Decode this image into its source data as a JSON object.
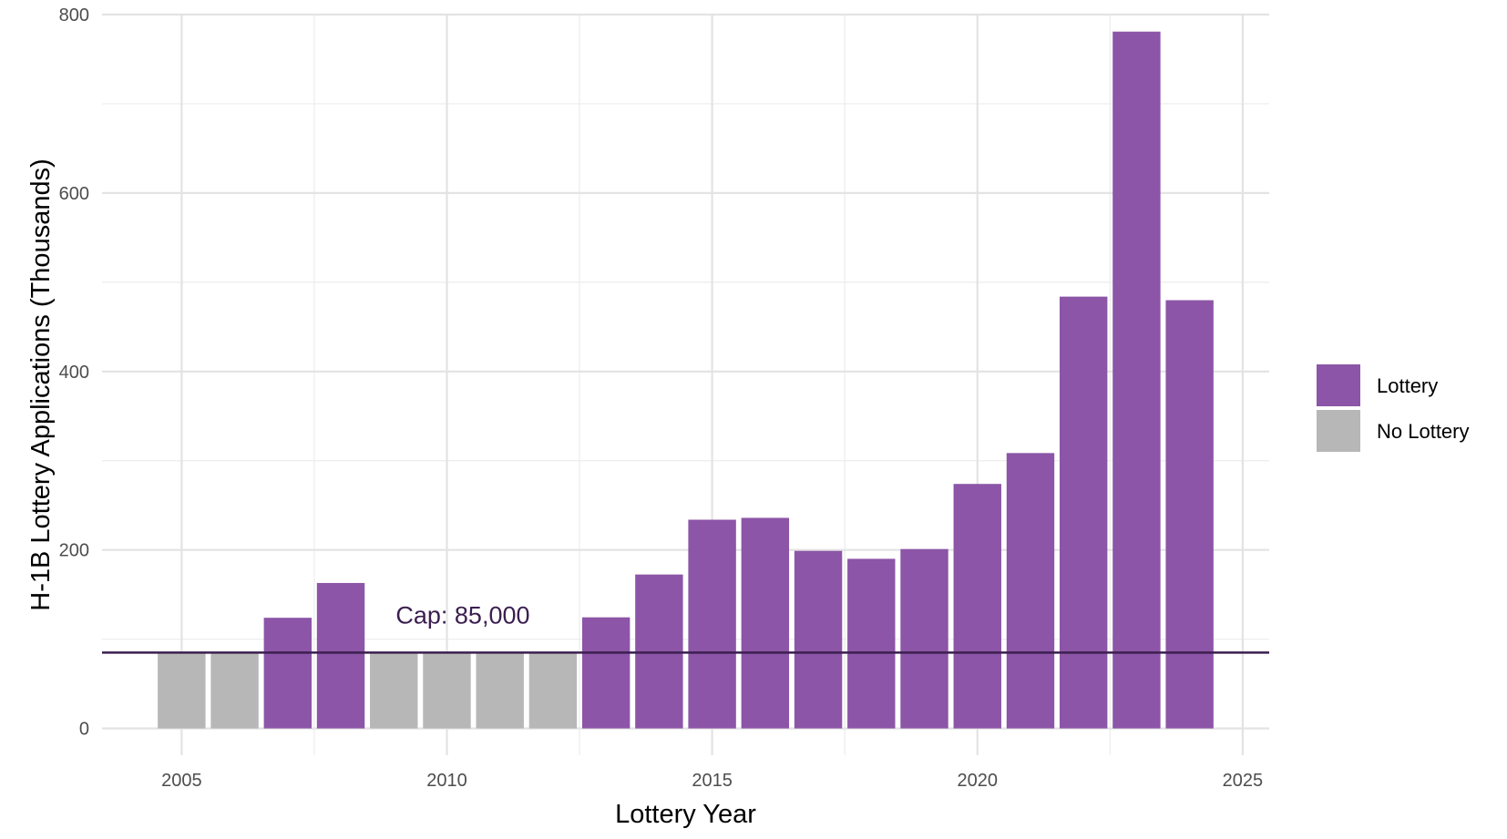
{
  "chart_data": {
    "type": "bar",
    "title": "",
    "xlabel": "Lottery Year",
    "ylabel": "H-1B Lottery Applications (Thousands)",
    "xlim": [
      2003.5,
      2025.5
    ],
    "ylim": [
      -30,
      800
    ],
    "x_ticks": [
      2005,
      2010,
      2015,
      2020,
      2025
    ],
    "y_ticks": [
      0,
      200,
      400,
      600,
      800
    ],
    "grid": true,
    "legend_position": "right",
    "x": [
      2005,
      2006,
      2007,
      2008,
      2009,
      2010,
      2011,
      2012,
      2013,
      2014,
      2015,
      2016,
      2017,
      2018,
      2019,
      2020,
      2021,
      2022,
      2023,
      2024
    ],
    "values": [
      85,
      85,
      124,
      163,
      85,
      85,
      85,
      85,
      124.5,
      172.5,
      233.9,
      236,
      199,
      190.1,
      201,
      274,
      308.6,
      483.9,
      780.9,
      479.9
    ],
    "groups": [
      "No Lottery",
      "No Lottery",
      "Lottery",
      "Lottery",
      "No Lottery",
      "No Lottery",
      "No Lottery",
      "No Lottery",
      "Lottery",
      "Lottery",
      "Lottery",
      "Lottery",
      "Lottery",
      "Lottery",
      "Lottery",
      "Lottery",
      "Lottery",
      "Lottery",
      "Lottery",
      "Lottery"
    ],
    "legend": [
      {
        "label": "Lottery",
        "color": "#8c55a7"
      },
      {
        "label": "No Lottery",
        "color": "#b7b7b7"
      }
    ],
    "cap_line": {
      "value": 85,
      "label": "Cap: 85,000",
      "label_x": 2010.3,
      "color": "#3b1f4f"
    }
  }
}
